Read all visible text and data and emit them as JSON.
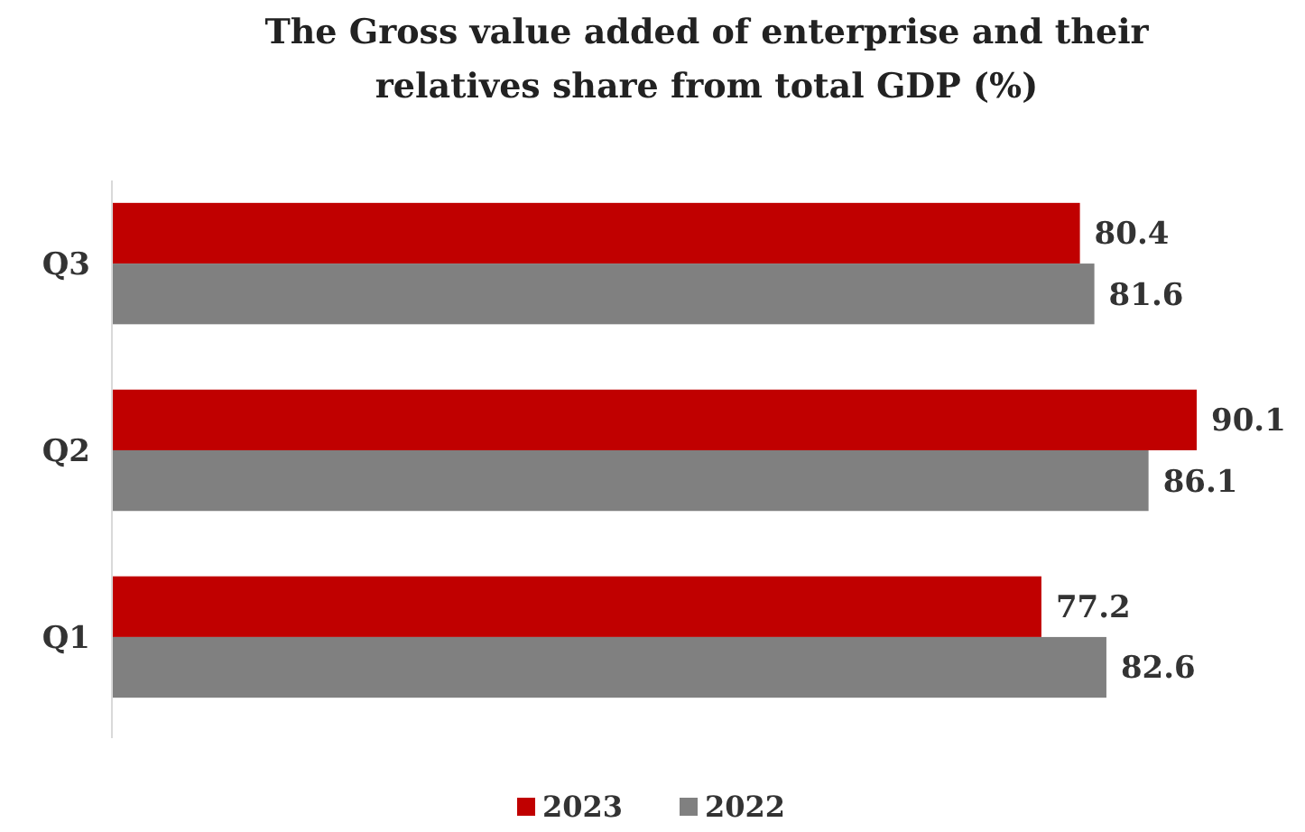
{
  "chart_data": {
    "type": "bar",
    "orientation": "horizontal",
    "title": "The Gross value added of enterprise and their relatives share from total GDP (%)",
    "categories": [
      "Q3",
      "Q2",
      "Q1"
    ],
    "series": [
      {
        "name": "2023",
        "color": "#c00000",
        "values": [
          80.4,
          90.1,
          77.2
        ]
      },
      {
        "name": "2022",
        "color": "#808080",
        "values": [
          81.6,
          86.1,
          82.6
        ]
      }
    ],
    "tick_labels": "y",
    "data_labels": true,
    "legend": "bottom"
  }
}
